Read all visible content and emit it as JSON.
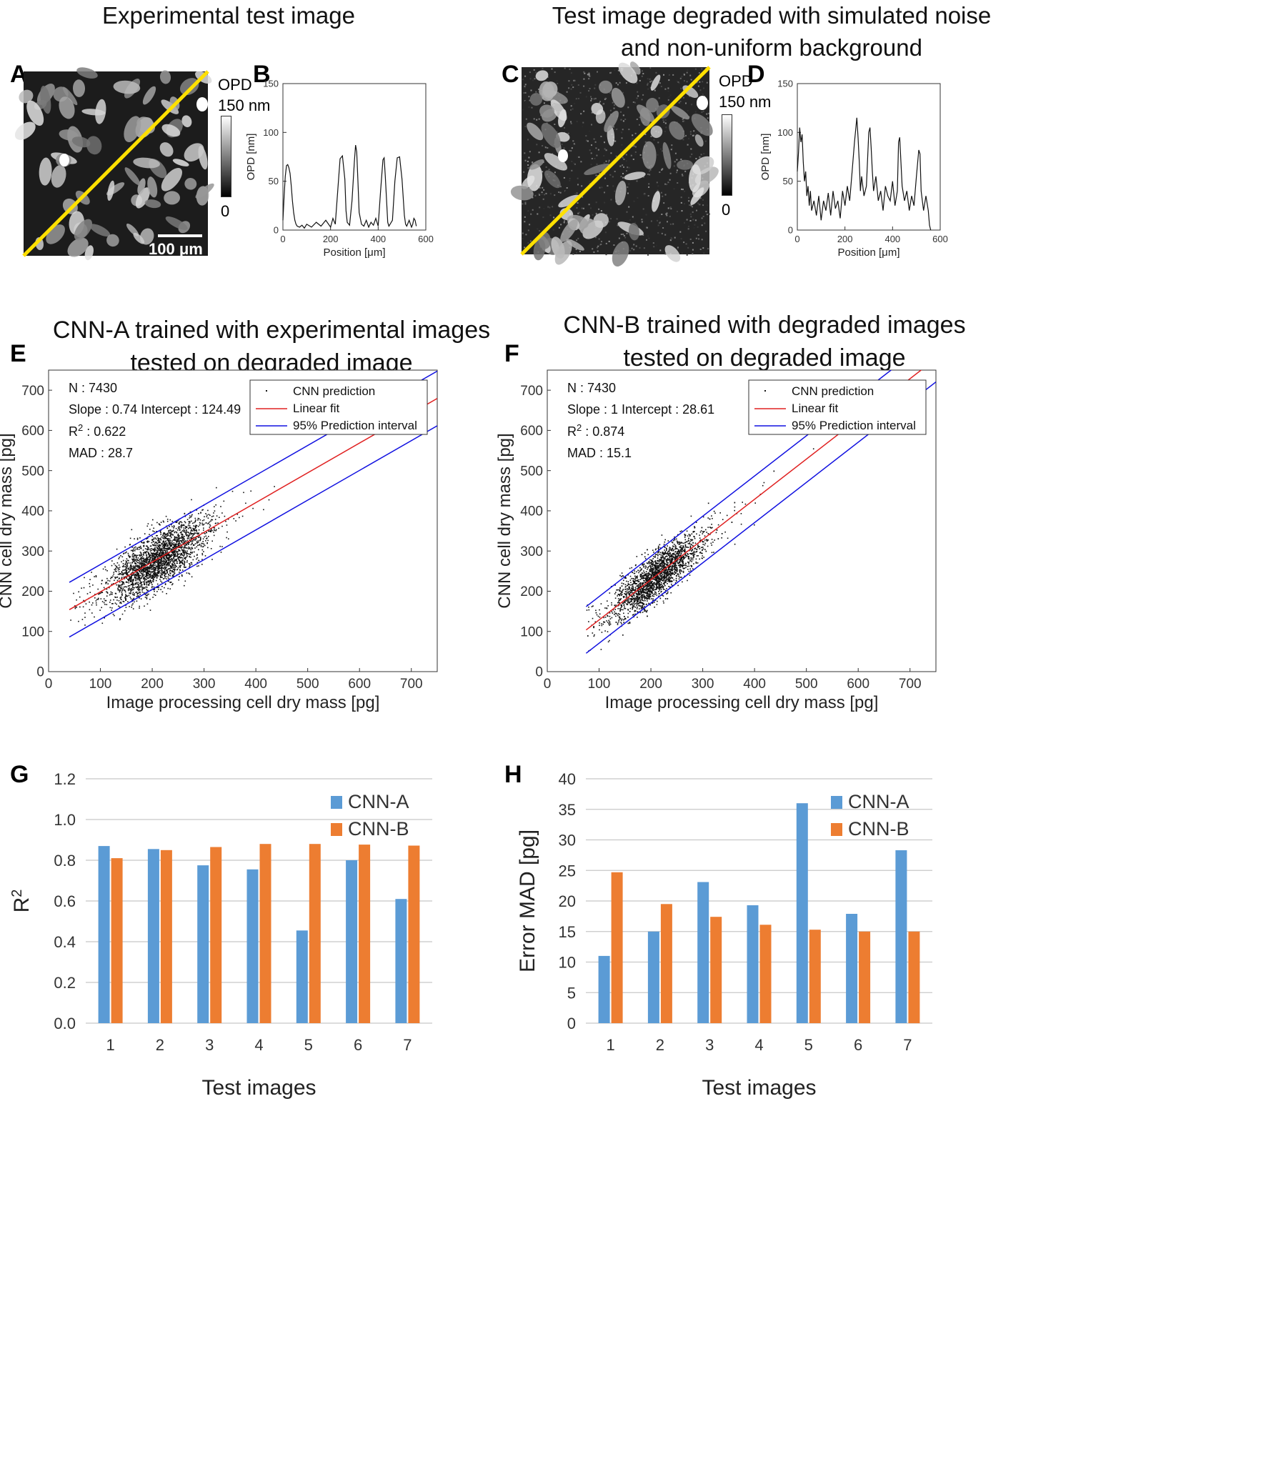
{
  "panels": {
    "A": {
      "letter": "A",
      "title": "Experimental test image",
      "scalebar": "100 μm",
      "cbar_label_1": "OPD",
      "cbar_label_2": "150 nm",
      "cbar_min": "0"
    },
    "B": {
      "letter": "B"
    },
    "C": {
      "letter": "C",
      "title_line1": "Test image degraded with simulated noise",
      "title_line2": "and non-uniform background",
      "cbar_label_1": "OPD",
      "cbar_label_2": "150 nm",
      "cbar_min": "0"
    },
    "D": {
      "letter": "D"
    },
    "E": {
      "letter": "E",
      "title_line1": "CNN-A trained with experimental images",
      "title_line2": "tested on degraded image"
    },
    "F": {
      "letter": "F",
      "title_line1": "CNN-B trained with degraded images",
      "title_line2": "tested on degraded image"
    },
    "G": {
      "letter": "G"
    },
    "H": {
      "letter": "H"
    }
  },
  "colors": {
    "line_overlay": "#ffe000",
    "fit": "#e02020",
    "interval": "#1010e0",
    "cnn_a": "#5b9bd5",
    "cnn_b": "#ed7d31"
  },
  "chart_data": [
    {
      "id": "B",
      "type": "line",
      "xlabel": "Position [μm]",
      "ylabel": "OPD [nm]",
      "xlim": [
        0,
        600
      ],
      "ylim": [
        0,
        150
      ],
      "xticks": [
        "0",
        "200",
        "400",
        "600"
      ],
      "yticks": [
        "0",
        "50",
        "100",
        "150"
      ],
      "x": [
        0,
        5,
        10,
        15,
        20,
        25,
        30,
        35,
        40,
        45,
        50,
        55,
        60,
        70,
        80,
        90,
        100,
        120,
        140,
        160,
        180,
        200,
        210,
        220,
        230,
        240,
        250,
        260,
        265,
        270,
        280,
        290,
        300,
        305,
        310,
        315,
        320,
        330,
        340,
        350,
        360,
        370,
        380,
        390,
        400,
        410,
        420,
        425,
        430,
        440,
        445,
        450,
        460,
        470,
        480,
        490,
        500,
        510,
        515,
        520,
        530,
        540,
        545,
        550,
        555,
        560
      ],
      "y": [
        10,
        35,
        55,
        66,
        67,
        64,
        58,
        45,
        30,
        18,
        10,
        6,
        4,
        3,
        5,
        2,
        6,
        3,
        8,
        4,
        10,
        3,
        12,
        6,
        40,
        73,
        76,
        52,
        20,
        8,
        5,
        30,
        70,
        87,
        80,
        50,
        18,
        6,
        4,
        10,
        3,
        8,
        5,
        12,
        4,
        40,
        72,
        74,
        55,
        8,
        4,
        6,
        10,
        50,
        74,
        75,
        52,
        15,
        6,
        4,
        10,
        3,
        6,
        12,
        10,
        4
      ]
    },
    {
      "id": "D",
      "type": "line",
      "xlabel": "Position [μm]",
      "ylabel": "OPD [nm]",
      "xlim": [
        0,
        600
      ],
      "ylim": [
        0,
        150
      ],
      "xticks": [
        "0",
        "200",
        "400",
        "600"
      ],
      "yticks": [
        "0",
        "50",
        "100",
        "150"
      ],
      "x": [
        0,
        5,
        10,
        15,
        20,
        25,
        30,
        35,
        40,
        45,
        50,
        55,
        60,
        70,
        80,
        90,
        100,
        110,
        120,
        130,
        140,
        150,
        160,
        170,
        180,
        190,
        200,
        210,
        220,
        230,
        240,
        250,
        255,
        260,
        265,
        270,
        280,
        290,
        300,
        305,
        310,
        315,
        320,
        330,
        340,
        350,
        360,
        370,
        380,
        390,
        400,
        410,
        420,
        425,
        430,
        435,
        440,
        450,
        460,
        470,
        480,
        490,
        500,
        510,
        515,
        520,
        525,
        530,
        540,
        550,
        555,
        560
      ],
      "y": [
        60,
        80,
        105,
        90,
        98,
        70,
        50,
        60,
        35,
        45,
        25,
        40,
        20,
        30,
        15,
        35,
        10,
        30,
        20,
        38,
        15,
        40,
        22,
        30,
        12,
        40,
        25,
        45,
        30,
        60,
        90,
        115,
        95,
        70,
        40,
        55,
        35,
        45,
        100,
        105,
        85,
        60,
        40,
        55,
        30,
        40,
        20,
        45,
        35,
        30,
        50,
        25,
        40,
        90,
        95,
        70,
        45,
        30,
        40,
        20,
        35,
        25,
        55,
        82,
        78,
        40,
        30,
        20,
        35,
        20,
        5,
        0
      ]
    },
    {
      "id": "E",
      "type": "scatter",
      "xlabel": "Image processing cell dry mass [pg]",
      "ylabel": "CNN cell dry mass [pg]",
      "xlim": [
        0,
        750
      ],
      "ylim": [
        0,
        750
      ],
      "xticks": [
        "0",
        "100",
        "200",
        "300",
        "400",
        "500",
        "600",
        "700"
      ],
      "yticks": [
        "0",
        "100",
        "200",
        "300",
        "400",
        "500",
        "600",
        "700"
      ],
      "stats": {
        "n": "N : 7430",
        "line2": "Slope : 0.74  Intercept : 124.49",
        "r2": "R",
        "r2_sup": "2",
        "r2_val": " : 0.622",
        "mad": "MAD : 28.7"
      },
      "legend": [
        "CNN prediction",
        "Linear fit",
        "95% Prediction interval"
      ],
      "n": 7430,
      "slope": 0.74,
      "intercept": 124.49,
      "interval_halfwidth": 68,
      "cluster_center": [
        210,
        280
      ],
      "cluster_sd": [
        45,
        40
      ],
      "x_start": 40
    },
    {
      "id": "F",
      "type": "scatter",
      "xlabel": "Image processing cell dry mass [pg]",
      "ylabel": "CNN cell dry mass [pg]",
      "xlim": [
        0,
        750
      ],
      "ylim": [
        0,
        750
      ],
      "xticks": [
        "0",
        "100",
        "200",
        "300",
        "400",
        "500",
        "600",
        "700"
      ],
      "yticks": [
        "0",
        "100",
        "200",
        "300",
        "400",
        "500",
        "600",
        "700"
      ],
      "stats": {
        "n": "N : 7430",
        "line2": "Slope : 1  Intercept : 28.61",
        "r2": "R",
        "r2_sup": "2",
        "r2_val": " : 0.874",
        "mad": "MAD : 15.1"
      },
      "legend": [
        "CNN prediction",
        "Linear fit",
        "95% Prediction interval"
      ],
      "n": 7430,
      "slope": 1.0,
      "intercept": 28.61,
      "interval_halfwidth": 58,
      "cluster_center": [
        210,
        240
      ],
      "cluster_sd": [
        40,
        40
      ],
      "x_start": 75
    },
    {
      "id": "G",
      "type": "bar",
      "xlabel": "Test images",
      "ylabel": "R",
      "ylabel_sup": "2",
      "categories": [
        "1",
        "2",
        "3",
        "4",
        "5",
        "6",
        "7"
      ],
      "ylim": [
        0,
        1.2
      ],
      "yticks": [
        "0.0",
        "0.2",
        "0.4",
        "0.6",
        "0.8",
        "1.0",
        "1.2"
      ],
      "series": [
        {
          "name": "CNN-A",
          "values": [
            0.87,
            0.855,
            0.775,
            0.755,
            0.455,
            0.8,
            0.61
          ]
        },
        {
          "name": "CNN-B",
          "values": [
            0.81,
            0.85,
            0.865,
            0.88,
            0.88,
            0.877,
            0.872
          ]
        }
      ]
    },
    {
      "id": "H",
      "type": "bar",
      "xlabel": "Test images",
      "ylabel": "Error MAD [pg]",
      "categories": [
        "1",
        "2",
        "3",
        "4",
        "5",
        "6",
        "7"
      ],
      "ylim": [
        0,
        40
      ],
      "yticks": [
        "0",
        "5",
        "10",
        "15",
        "20",
        "25",
        "30",
        "35",
        "40"
      ],
      "series": [
        {
          "name": "CNN-A",
          "values": [
            11,
            15,
            23.1,
            19.3,
            36,
            17.9,
            28.3
          ]
        },
        {
          "name": "CNN-B",
          "values": [
            24.7,
            19.5,
            17.4,
            16.1,
            15.3,
            15,
            15
          ]
        }
      ]
    }
  ]
}
